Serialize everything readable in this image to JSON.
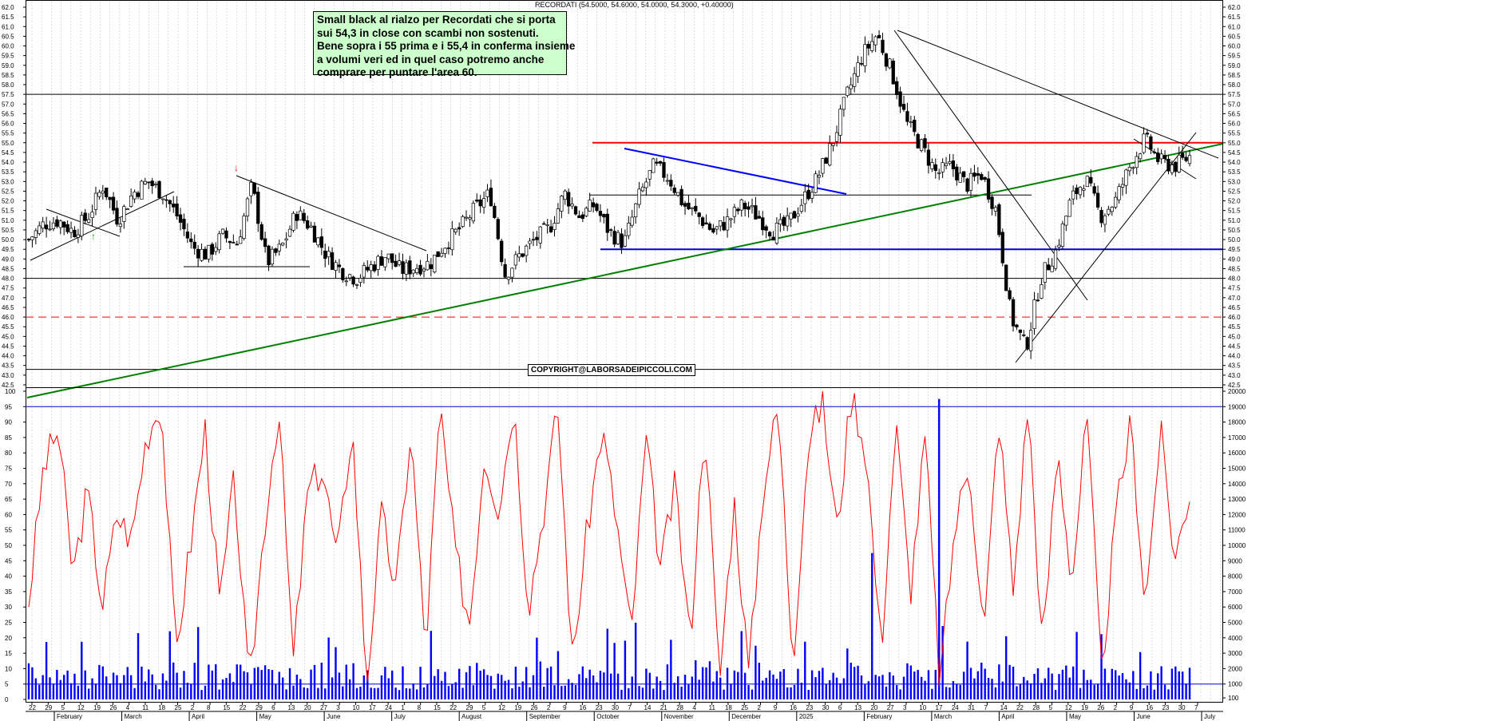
{
  "header": {
    "title": "RECORDATI (54.5000, 54.6000, 54.0000, 54.3000, +0.40000)"
  },
  "note": {
    "lines": [
      "Small black al rialzo per Recordati che si porta",
      "sui 54,3 in close con scambi non sostenuti.",
      "Bene sopra i 55 prima e i 55,4 in conferma insieme",
      "a volumi veri ed in quel caso potremo anche",
      "comprare per puntare l'area 60."
    ]
  },
  "copyright": "COPYRIGHT@LABORSADEIPICCOLI.COM",
  "colors": {
    "grid": "#c8c8c8",
    "support_red": "#ff0000",
    "trend_green": "#008000",
    "trend_blue": "#0000ff",
    "oscillator_red": "#ff0000",
    "volume_blue": "#0000ff",
    "candle_bull": "#ffffff",
    "candle_bear": "#000000",
    "note_bg": "#ccffcc"
  },
  "chart_data": [
    {
      "type": "candlestick",
      "ylim": [
        42.5,
        62.0
      ],
      "y_ticks": [
        "62.0",
        "61.5",
        "61.0",
        "60.5",
        "60.0",
        "59.5",
        "59.0",
        "58.5",
        "58.0",
        "57.5",
        "57.0",
        "56.5",
        "56.0",
        "55.5",
        "55.0",
        "54.5",
        "54.0",
        "53.5",
        "53.0",
        "52.5",
        "52.0",
        "51.5",
        "51.0",
        "50.5",
        "50.0",
        "49.5",
        "49.0",
        "48.5",
        "48.0",
        "47.5",
        "47.0",
        "46.5",
        "46.0",
        "45.5",
        "45.0",
        "44.5",
        "44.0",
        "43.5",
        "43.0",
        "42.5"
      ],
      "last_ohlc": {
        "open": 54.5,
        "high": 54.6,
        "low": 54.0,
        "close": 54.3,
        "change": 0.4
      },
      "horizontal_levels": [
        {
          "value": 57.5,
          "color": "#000000",
          "style": "solid"
        },
        {
          "value": 55.0,
          "color": "#ff0000",
          "style": "solid"
        },
        {
          "value": 52.3,
          "color": "#000000",
          "style": "solid"
        },
        {
          "value": 49.5,
          "color": "#0000cc",
          "style": "solid"
        },
        {
          "value": 48.0,
          "color": "#000000",
          "style": "solid"
        },
        {
          "value": 46.0,
          "color": "#ff0000",
          "style": "dashed"
        },
        {
          "value": 43.3,
          "color": "#000000",
          "style": "solid"
        }
      ],
      "price_waypoints": [
        50.0,
        50.8,
        51.0,
        50.4,
        51.2,
        52.8,
        51.0,
        52.4,
        53.0,
        52.4,
        51.2,
        49.6,
        49.2,
        50.2,
        49.8,
        52.8,
        48.8,
        49.6,
        51.4,
        50.6,
        49.2,
        48.4,
        48.0,
        48.6,
        49.2,
        48.4,
        48.6,
        48.8,
        49.8,
        50.6,
        51.6,
        52.4,
        48.2,
        49.2,
        50.0,
        50.6,
        52.4,
        51.2,
        51.8,
        50.4,
        49.8,
        52.2,
        53.8,
        53.2,
        51.8,
        51.2,
        50.4,
        51.0,
        51.8,
        51.2,
        50.4,
        50.8,
        52.0,
        53.2,
        55.0,
        57.5,
        59.5,
        60.6,
        58.6,
        56.0,
        54.8,
        53.4,
        53.8,
        52.8,
        53.4,
        51.5,
        46.0,
        44.4,
        48.0,
        49.4,
        52.0,
        53.2,
        51.2,
        52.0,
        53.8,
        55.2,
        54.0,
        53.8,
        54.3
      ]
    },
    {
      "type": "line+bar",
      "name": "oscillator",
      "ylim": [
        0,
        100
      ],
      "y_ticks": [
        "100",
        "95",
        "90",
        "85",
        "80",
        "75",
        "70",
        "65",
        "60",
        "55",
        "50",
        "45",
        "40",
        "35",
        "30",
        "25",
        "20",
        "15",
        "10",
        "5",
        "0"
      ],
      "reference_levels": [
        95,
        5
      ],
      "oscillator_waypoints": [
        32,
        75,
        88,
        40,
        68,
        30,
        60,
        52,
        85,
        97,
        15,
        50,
        88,
        30,
        72,
        2,
        55,
        95,
        12,
        68,
        75,
        45,
        90,
        5,
        60,
        35,
        88,
        15,
        95,
        48,
        25,
        80,
        62,
        97,
        30,
        60,
        95,
        12,
        55,
        88,
        58,
        20,
        85,
        42,
        70,
        18,
        92,
        5,
        65,
        8,
        70,
        95,
        12,
        82,
        97,
        55,
        100,
        80,
        15,
        90,
        35,
        85,
        5,
        55,
        78,
        20,
        92,
        35,
        97,
        15,
        82,
        38,
        92,
        8,
        60,
        90,
        30,
        88,
        45,
        68
      ]
    },
    {
      "type": "bar",
      "name": "volume",
      "ylim": [
        0,
        20000
      ],
      "y_ticks": [
        "20000",
        "19000",
        "18000",
        "17000",
        "16000",
        "15000",
        "14000",
        "13000",
        "12000",
        "11000",
        "10000",
        "9000",
        "8000",
        "7000",
        "6000",
        "5000",
        "4000",
        "3000",
        "2000",
        "1000",
        "100"
      ],
      "spikes": [
        {
          "month_index": 13,
          "value": 19500
        },
        {
          "month_index": 12,
          "value": 9500
        }
      ]
    }
  ],
  "x_axis": {
    "day_labels": [
      "22",
      "29",
      "5",
      "12",
      "19",
      "26",
      "4",
      "11",
      "18",
      "25",
      "2",
      "8",
      "15",
      "22",
      "29",
      "6",
      "13",
      "20",
      "27",
      "3",
      "10",
      "17",
      "24",
      "1",
      "8",
      "15",
      "22",
      "29",
      "5",
      "12",
      "19",
      "26",
      "2",
      "9",
      "16",
      "23",
      "30",
      "7",
      "14",
      "21",
      "28",
      "4",
      "11",
      "18",
      "25",
      "2",
      "9",
      "16",
      "23",
      "30",
      "6",
      "13",
      "20",
      "27",
      "3",
      "10",
      "17",
      "24",
      "31",
      "7",
      "14",
      "22",
      "28",
      "5",
      "12",
      "19",
      "26",
      "2",
      "9",
      "16",
      "23",
      "30",
      "7"
    ],
    "month_labels": [
      "February",
      "March",
      "April",
      "May",
      "June",
      "July",
      "August",
      "September",
      "October",
      "November",
      "December",
      "2025",
      "February",
      "March",
      "April",
      "May",
      "June",
      "July"
    ]
  }
}
